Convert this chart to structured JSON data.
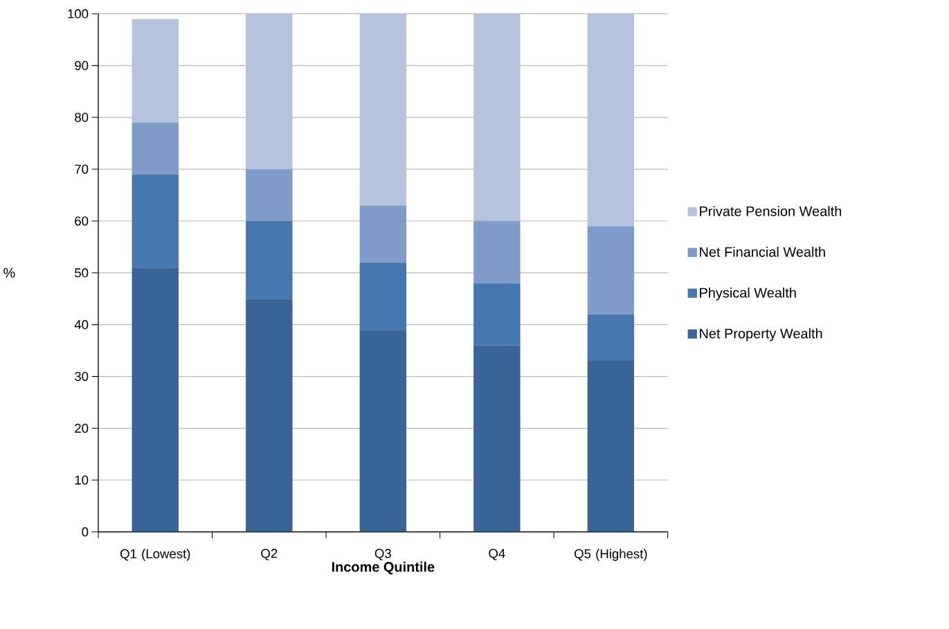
{
  "chart_data": {
    "type": "bar",
    "stacked": true,
    "xlabel": "Income Quintile",
    "ylabel": "%",
    "categories": [
      "Q1 (Lowest)",
      "Q2",
      "Q3",
      "Q4",
      "Q5 (Highest)"
    ],
    "series": [
      {
        "name": "Net Property Wealth",
        "color": "#3b6496",
        "values": [
          51,
          45,
          39,
          36,
          33
        ]
      },
      {
        "name": "Physical Wealth",
        "color": "#4777af",
        "values": [
          18,
          15,
          13,
          12,
          9
        ]
      },
      {
        "name": "Net Financial Wealth",
        "color": "#7f9cc8",
        "values": [
          10,
          10,
          11,
          12,
          17
        ]
      },
      {
        "name": "Private Pension Wealth",
        "color": "#b5c3de",
        "values": [
          20,
          30,
          37,
          40,
          41
        ]
      }
    ],
    "ylim": [
      0,
      100
    ],
    "yticks": [
      0,
      10,
      20,
      30,
      40,
      50,
      60,
      70,
      80,
      90,
      100
    ],
    "grid": "y",
    "legend": "right"
  }
}
